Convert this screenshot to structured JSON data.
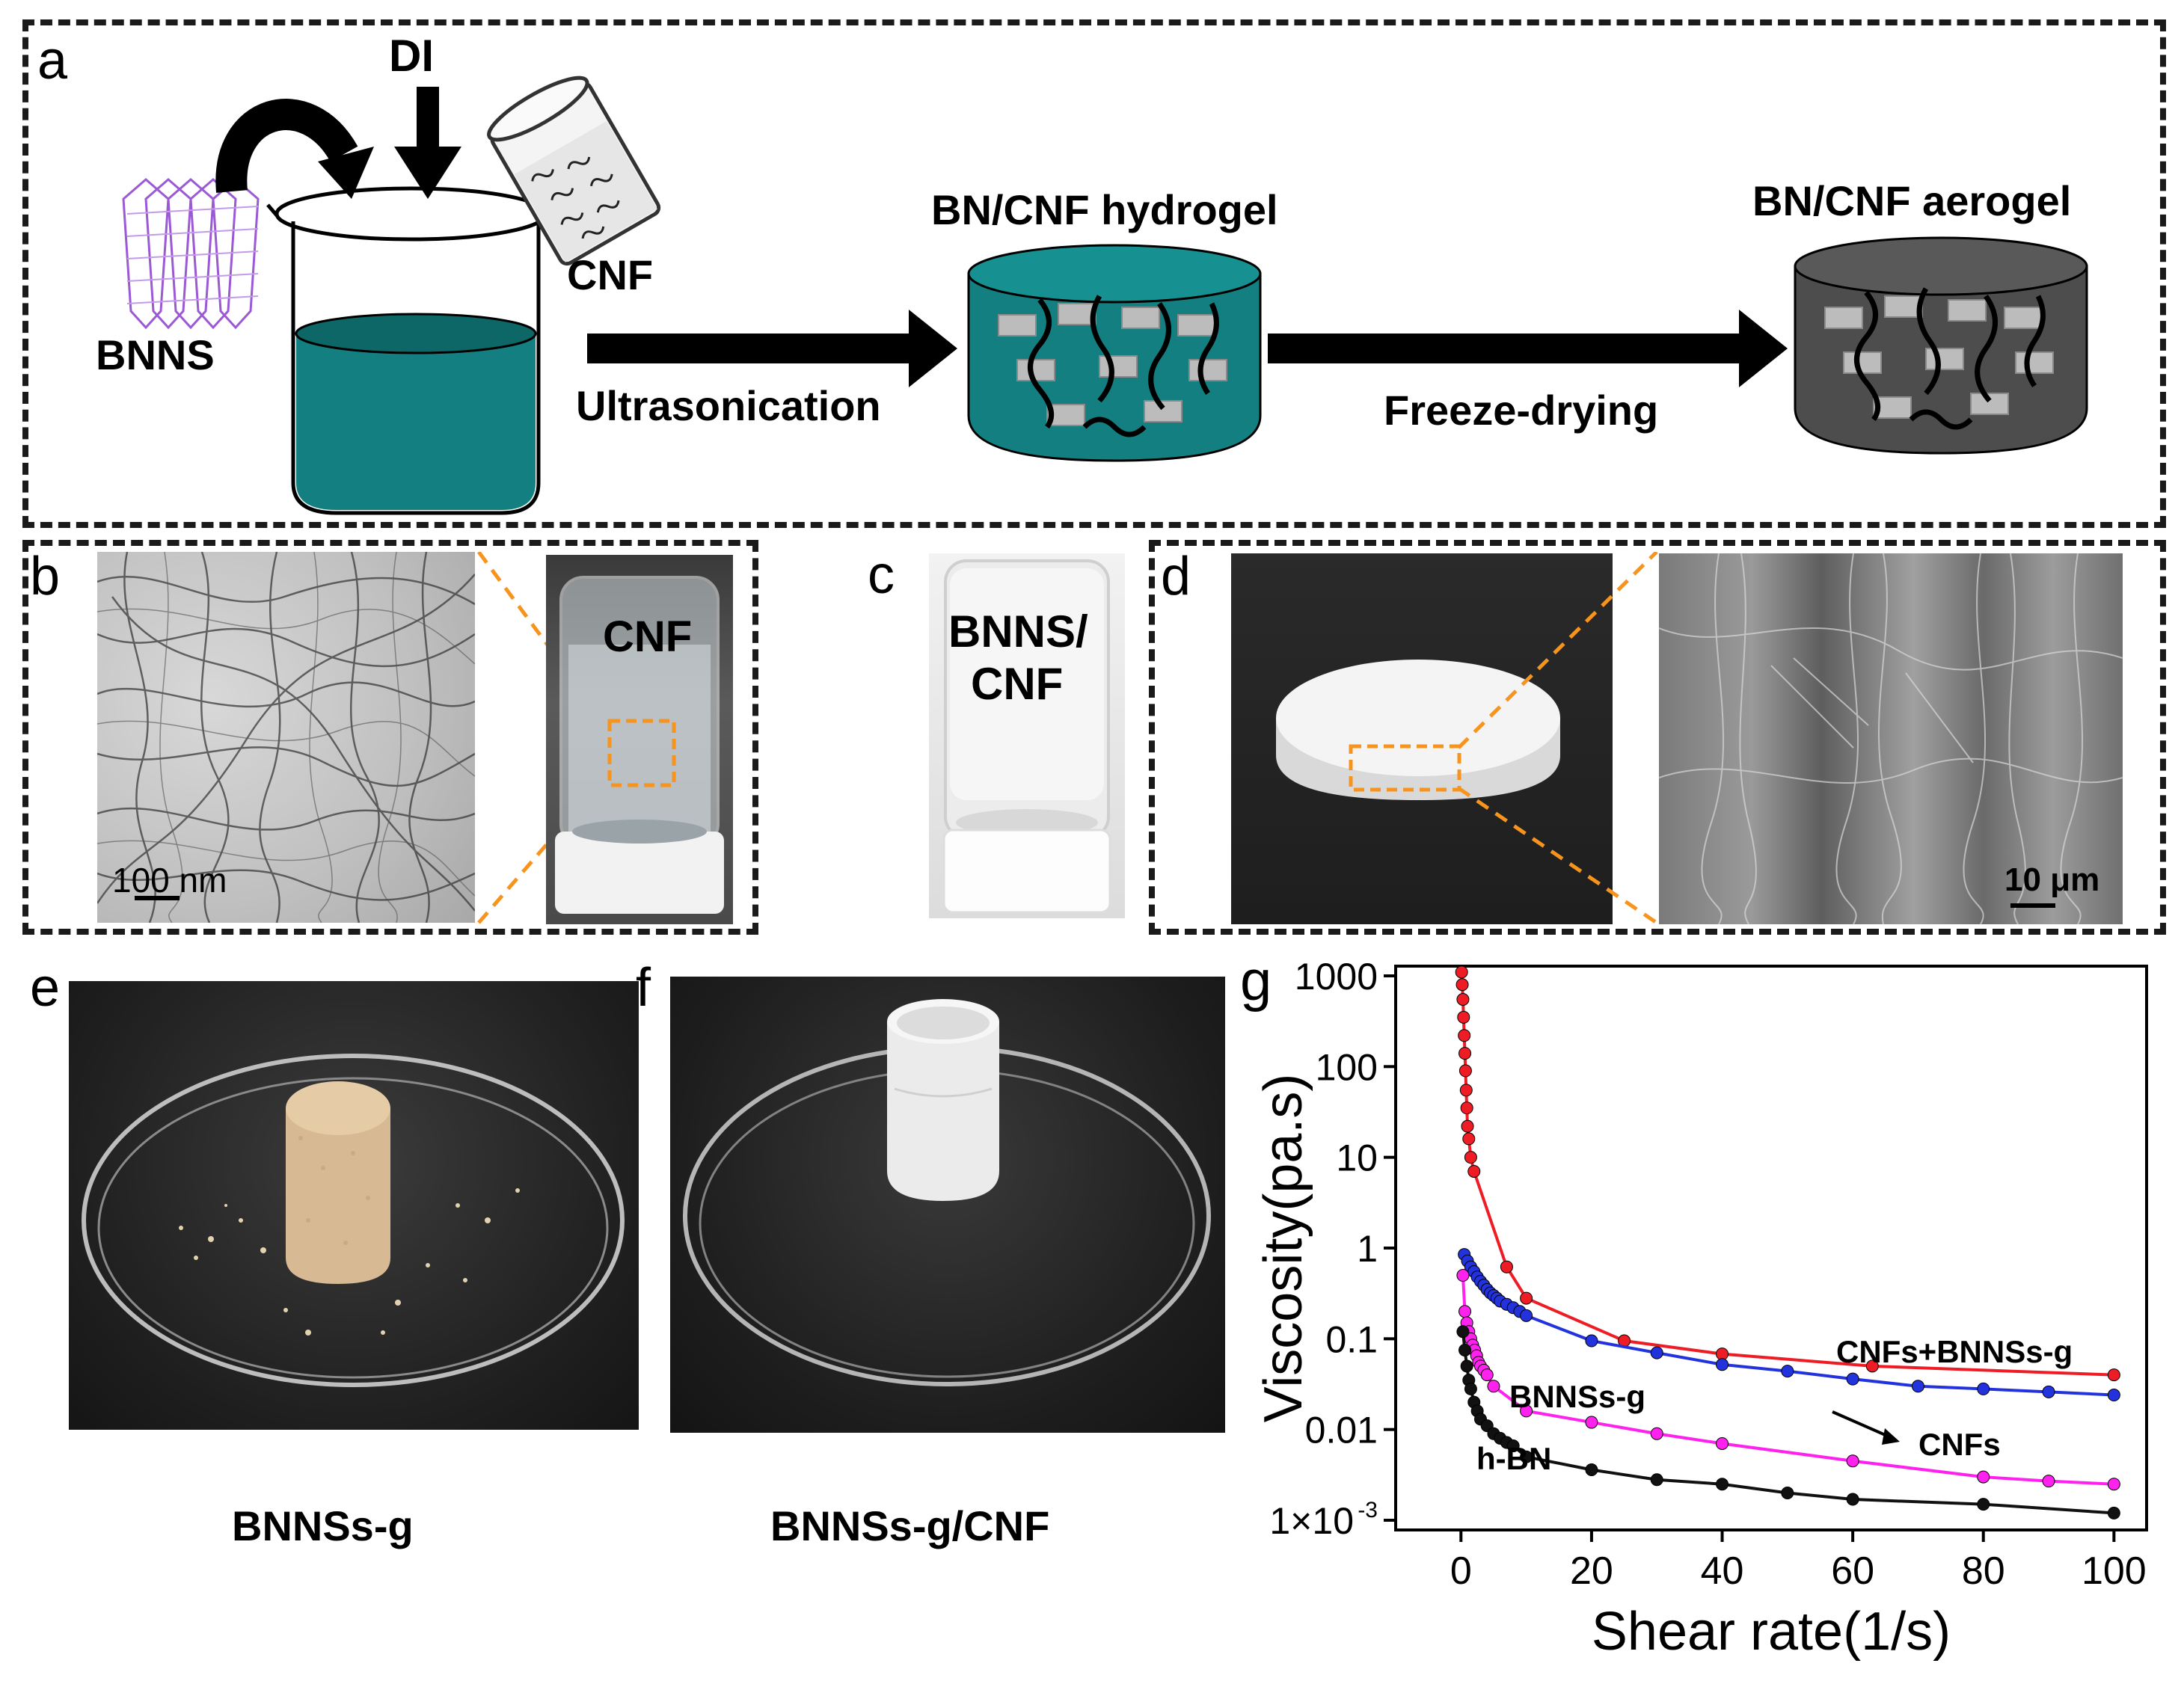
{
  "panels": {
    "a": {
      "label": "a",
      "di": "DI",
      "bnns": "BNNS",
      "cnf": "CNF",
      "ultrasonication": "Ultrasonication",
      "hydrogel": "BN/CNF hydrogel",
      "freeze_drying": "Freeze-drying",
      "aerogel": "BN/CNF aerogel"
    },
    "b": {
      "label": "b",
      "scale_bar": "100 nm",
      "vial_label": "CNF"
    },
    "c": {
      "label": "c",
      "vial_label_line1": "BNNS/",
      "vial_label_line2": "CNF"
    },
    "d": {
      "label": "d",
      "scale_bar": "10 μm"
    },
    "e": {
      "label": "e",
      "caption": "BNNSs-g"
    },
    "f": {
      "label": "f",
      "caption": "BNNSs-g/CNF"
    },
    "g": {
      "label": "g"
    }
  },
  "colors": {
    "teal": "#137f80",
    "red": "#ee1c24",
    "blue": "#2233dd",
    "magenta": "#ff22ee",
    "black": "#111111",
    "orange_dash": "#f7941d"
  },
  "chart_data": {
    "type": "line",
    "xlabel": "Shear rate(1/s)",
    "ylabel": "Viscosity(pa.s)",
    "xlim": [
      -10,
      105
    ],
    "ylim": [
      0.001,
      1000
    ],
    "yscale": "log",
    "xticks": [
      0,
      20,
      40,
      60,
      80,
      100
    ],
    "xtick_labels": [
      "0",
      "20",
      "40",
      "60",
      "80",
      "100"
    ],
    "yticks": [
      0.001,
      0.01,
      0.1,
      1,
      10,
      100,
      1000
    ],
    "ytick_labels": [
      "1×10",
      "0.01",
      "0.1",
      "1",
      "10",
      "100",
      "1000"
    ],
    "ytick_first_exponent": "-3",
    "grid": false,
    "series": [
      {
        "name": "CNFs+BNNSs-g",
        "color": "#ee1c24",
        "x": [
          0.1,
          0.2,
          0.3,
          0.4,
          0.5,
          0.6,
          0.7,
          0.8,
          0.9,
          1.0,
          1.2,
          1.5,
          2,
          7,
          10,
          25,
          40,
          63,
          100
        ],
        "y": [
          1100,
          800,
          550,
          350,
          220,
          140,
          90,
          55,
          35,
          22,
          16,
          10,
          7,
          0.62,
          0.28,
          0.095,
          0.068,
          0.05,
          0.04
        ]
      },
      {
        "name": "CNFs",
        "color": "#2233dd",
        "x": [
          0.5,
          1,
          1.5,
          2,
          2.5,
          3,
          3.5,
          4,
          4.5,
          5,
          5.5,
          6,
          7,
          8,
          9,
          10,
          20,
          30,
          40,
          50,
          60,
          70,
          80,
          90,
          100
        ],
        "y": [
          0.85,
          0.72,
          0.62,
          0.55,
          0.48,
          0.43,
          0.39,
          0.35,
          0.32,
          0.3,
          0.28,
          0.26,
          0.24,
          0.22,
          0.2,
          0.18,
          0.095,
          0.07,
          0.052,
          0.044,
          0.036,
          0.03,
          0.028,
          0.026,
          0.024
        ]
      },
      {
        "name": "BNNSs-g",
        "color": "#ff22ee",
        "x": [
          0.3,
          0.6,
          0.9,
          1.2,
          1.5,
          1.8,
          2.1,
          2.4,
          2.7,
          3,
          3.5,
          4,
          5,
          10,
          20,
          30,
          40,
          60,
          80,
          90,
          100
        ],
        "y": [
          0.5,
          0.2,
          0.15,
          0.12,
          0.1,
          0.085,
          0.075,
          0.065,
          0.055,
          0.05,
          0.045,
          0.04,
          0.03,
          0.016,
          0.012,
          0.009,
          0.007,
          0.0045,
          0.003,
          0.0027,
          0.0025
        ]
      },
      {
        "name": "h-BN",
        "color": "#111111",
        "x": [
          0.3,
          0.6,
          0.9,
          1.2,
          1.5,
          2,
          2.5,
          3,
          4,
          5,
          6,
          7,
          8,
          10,
          20,
          30,
          40,
          50,
          60,
          80,
          100
        ],
        "y": [
          0.12,
          0.075,
          0.05,
          0.035,
          0.028,
          0.02,
          0.016,
          0.013,
          0.011,
          0.009,
          0.008,
          0.0072,
          0.0066,
          0.005,
          0.0036,
          0.0028,
          0.0025,
          0.002,
          0.0017,
          0.0015,
          0.0012
        ]
      }
    ],
    "annotations": [
      "CNFs+BNNSs-g",
      "BNNSs-g",
      "CNFs",
      "h-BN"
    ]
  }
}
